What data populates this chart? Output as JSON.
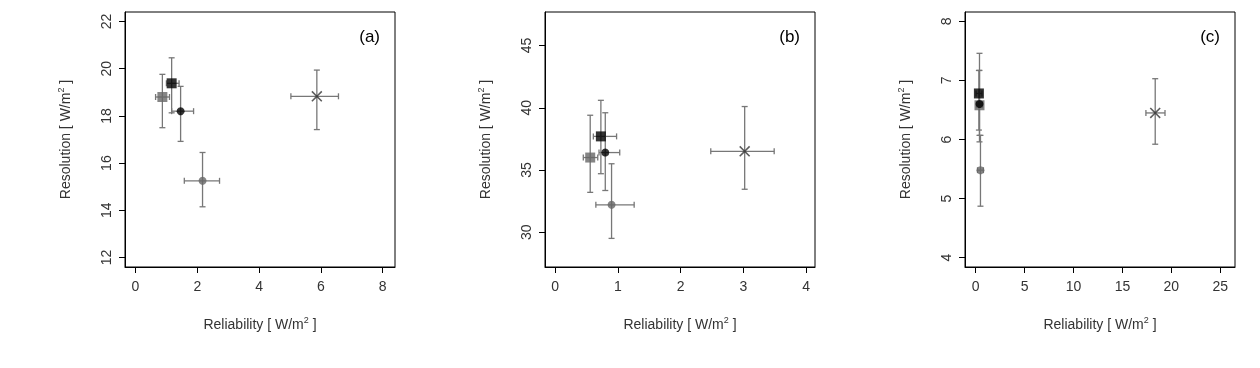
{
  "chart_data": [
    {
      "type": "scatter",
      "xlabel": "Reliability [ W/m$^{2}$ ]",
      "ylabel": "Resolution [ W/m$^{2}$ ]",
      "annotations": [
        "(a)"
      ],
      "xlim": [
        -0.34,
        8.4
      ],
      "ylim": [
        11.6,
        22.4
      ],
      "xticks": [
        0,
        2,
        4,
        6,
        8
      ],
      "yticks": [
        12,
        14,
        16,
        18,
        20,
        22
      ],
      "series": [
        {
          "marker": "square",
          "color": "#666666",
          "x": [
            0.87
          ],
          "values": [
            18.8
          ],
          "errors": [
            [
              17.5,
              19.76
            ]
          ],
          "xerrors": [
            [
              0.65,
              1.1
            ]
          ]
        },
        {
          "marker": "square",
          "color": "#000000",
          "x": [
            1.17
          ],
          "values": [
            19.38
          ],
          "errors": [
            [
              18.13,
              20.46
            ]
          ],
          "xerrors": [
            [
              1.0,
              1.41
            ]
          ]
        },
        {
          "marker": "circle",
          "color": "#000000",
          "x": [
            1.46
          ],
          "values": [
            18.2
          ],
          "errors": [
            [
              16.92,
              19.25
            ]
          ],
          "xerrors": [
            [
              1.17,
              1.88
            ]
          ]
        },
        {
          "marker": "circle",
          "color": "#666666",
          "x": [
            2.17
          ],
          "values": [
            15.25
          ],
          "errors": [
            [
              14.15,
              16.45
            ]
          ],
          "xerrors": [
            [
              1.58,
              2.72
            ]
          ]
        },
        {
          "marker": "cross",
          "color": "#333333",
          "x": [
            5.87
          ],
          "values": [
            18.83
          ],
          "errors": [
            [
              17.42,
              19.94
            ]
          ],
          "xerrors": [
            [
              5.03,
              6.57
            ]
          ]
        }
      ]
    },
    {
      "type": "scatter",
      "xlabel": "Reliability [ W/m$^{2}$ ]",
      "ylabel": "Resolution [ W/m$^{2}$ ]",
      "annotations": [
        "(b)"
      ],
      "xlim": [
        -0.16,
        4.14
      ],
      "ylim": [
        27.2,
        47.7
      ],
      "xticks": [
        0,
        1,
        2,
        3,
        4
      ],
      "yticks": [
        30,
        35,
        40,
        45
      ],
      "series": [
        {
          "marker": "square",
          "color": "#666666",
          "x": [
            0.56
          ],
          "values": [
            36.0
          ],
          "errors": [
            [
              33.2,
              39.4
            ]
          ],
          "xerrors": [
            [
              0.45,
              0.68
            ]
          ]
        },
        {
          "marker": "square",
          "color": "#000000",
          "x": [
            0.73
          ],
          "values": [
            37.7
          ],
          "errors": [
            [
              34.7,
              40.6
            ]
          ],
          "xerrors": [
            [
              0.61,
              0.98
            ]
          ]
        },
        {
          "marker": "circle",
          "color": "#000000",
          "x": [
            0.8
          ],
          "values": [
            36.4
          ],
          "errors": [
            [
              33.35,
              39.6
            ]
          ],
          "xerrors": [
            [
              0.7,
              1.03
            ]
          ]
        },
        {
          "marker": "circle",
          "color": "#666666",
          "x": [
            0.9
          ],
          "values": [
            32.2
          ],
          "errors": [
            [
              29.5,
              35.5
            ]
          ],
          "xerrors": [
            [
              0.65,
              1.26
            ]
          ]
        },
        {
          "marker": "cross",
          "color": "#333333",
          "x": [
            3.02
          ],
          "values": [
            36.5
          ],
          "errors": [
            [
              33.45,
              40.1
            ]
          ],
          "xerrors": [
            [
              2.48,
              3.49
            ]
          ]
        }
      ]
    },
    {
      "type": "scatter",
      "xlabel": "Reliability [ W/m$^{2}$ ]",
      "ylabel": "Resolution [ W/m$^{2}$ ]",
      "annotations": [
        "(c)"
      ],
      "xlim": [
        -1.08,
        26.5
      ],
      "ylim": [
        3.84,
        8.16
      ],
      "xticks": [
        0,
        5,
        10,
        15,
        20,
        25
      ],
      "yticks": [
        4,
        5,
        6,
        7,
        8
      ],
      "series": [
        {
          "marker": "square",
          "color": "#666666",
          "x": [
            0.4
          ],
          "values": [
            6.58
          ],
          "errors": [
            [
              5.96,
              7.46
            ]
          ],
          "xerrors": [
            [
              0.1,
              0.7
            ]
          ]
        },
        {
          "marker": "square",
          "color": "#000000",
          "x": [
            0.34
          ],
          "values": [
            6.78
          ],
          "errors": [
            [
              6.16,
              7.17
            ]
          ],
          "xerrors": [
            [
              0.05,
              0.65
            ]
          ]
        },
        {
          "marker": "circle",
          "color": "#000000",
          "x": [
            0.4
          ],
          "values": [
            6.6
          ],
          "errors": [
            [
              6.07,
              7.17
            ]
          ],
          "xerrors": [
            [
              0.1,
              0.7
            ]
          ]
        },
        {
          "marker": "circle",
          "color": "#666666",
          "x": [
            0.5
          ],
          "values": [
            5.48
          ],
          "errors": [
            [
              4.87,
              6.07
            ]
          ],
          "xerrors": [
            [
              0.2,
              0.8
            ]
          ]
        },
        {
          "marker": "cross",
          "color": "#333333",
          "x": [
            18.35
          ],
          "values": [
            6.45
          ],
          "errors": [
            [
              5.92,
              7.03
            ]
          ],
          "xerrors": [
            [
              17.4,
              19.35
            ]
          ]
        }
      ]
    }
  ]
}
